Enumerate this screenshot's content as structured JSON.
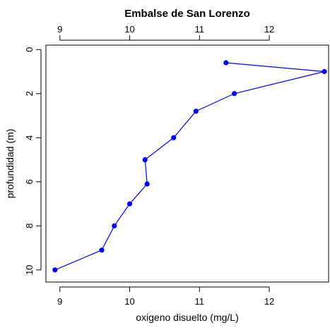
{
  "chart_data": {
    "type": "line",
    "title": "Embalse de San Lorenzo",
    "xlabel": "oxigeno disuelto (mg/L)",
    "ylabel": "profundidad (m)",
    "xlim": [
      8.8,
      12.85
    ],
    "ylim": [
      10.55,
      -0.2
    ],
    "y_inverted": true,
    "xticks": [
      9,
      10,
      11,
      12
    ],
    "yticks": [
      0,
      2,
      4,
      6,
      8,
      10
    ],
    "x_axis_top": true,
    "x_axis_bottom": true,
    "grid": false,
    "series": [
      {
        "color": "#0000ff",
        "marker": "circle",
        "x": [
          11.38,
          12.79,
          11.5,
          10.95,
          10.63,
          10.22,
          10.25,
          10.0,
          9.78,
          9.6,
          8.93
        ],
        "y": [
          0.6,
          1.0,
          2.0,
          2.8,
          4.0,
          5.0,
          6.1,
          7.0,
          8.0,
          9.1,
          10.0
        ]
      }
    ]
  }
}
